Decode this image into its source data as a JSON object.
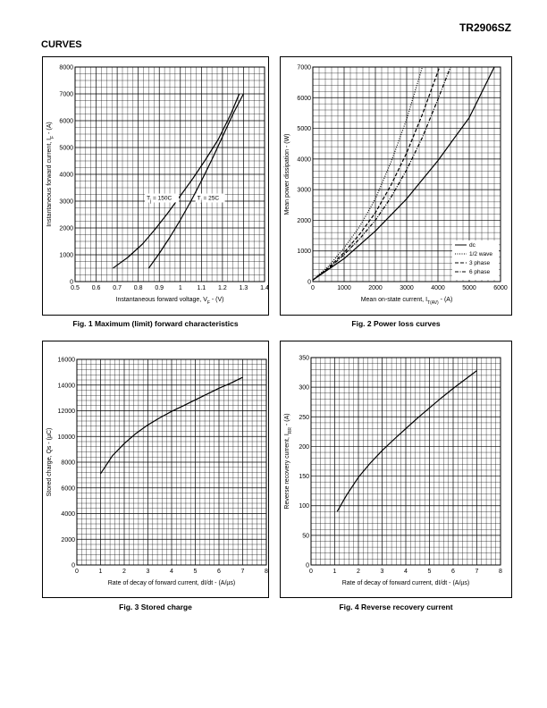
{
  "header": {
    "doc_id": "TR2906SZ",
    "section": "CURVES"
  },
  "chart_data": [
    {
      "id": "fig1",
      "type": "line",
      "caption": "Fig. 1 Maximum (limit) forward characteristics",
      "xlabel_pre": "Instantaneous forward voltage, V",
      "xlabel_sub": "F",
      "xlabel_post": " - (V)",
      "ylabel_pre": "Instantaneous forward current, I",
      "ylabel_sub": "F",
      "ylabel_post": " - (A)",
      "xlim": [
        0.5,
        1.4
      ],
      "ylim": [
        0,
        8000
      ],
      "xticks": [
        "0.5",
        "0.6",
        "0.7",
        "0.8",
        "0.9",
        "1",
        "1.1",
        "1.2",
        "1.3",
        "1.4"
      ],
      "yticks": [
        "0",
        "1000",
        "2000",
        "3000",
        "4000",
        "5000",
        "6000",
        "7000",
        "8000"
      ],
      "grid": true,
      "series": [
        {
          "name": "T j = 150C",
          "label_pre": "T",
          "label_sub": "j",
          "label_post": " = 150C",
          "dash": "solid",
          "x": [
            0.68,
            0.75,
            0.82,
            0.88,
            0.94,
            1.0,
            1.06,
            1.12,
            1.18,
            1.24,
            1.28
          ],
          "y": [
            500,
            900,
            1400,
            1950,
            2550,
            3200,
            3850,
            4550,
            5300,
            6250,
            7000
          ]
        },
        {
          "name": "T j = 25C",
          "label_pre": "T",
          "label_sub": "j",
          "label_post": " = 25C",
          "dash": "solid",
          "x": [
            0.85,
            0.9,
            0.95,
            1.0,
            1.05,
            1.1,
            1.15,
            1.2,
            1.25,
            1.3
          ],
          "y": [
            500,
            1050,
            1650,
            2300,
            3000,
            3750,
            4550,
            5400,
            6250,
            7000
          ]
        }
      ]
    },
    {
      "id": "fig2",
      "type": "line",
      "caption": "Fig. 2 Power loss curves",
      "xlabel_pre": "Mean on-state current, I",
      "xlabel_sub": "T(AV)",
      "xlabel_post": " - (A)",
      "ylabel_pre": "Mean power dissipation - (W)",
      "ylabel_sub": "",
      "ylabel_post": "",
      "xlim": [
        0,
        6000
      ],
      "ylim": [
        0,
        7000
      ],
      "xticks": [
        "0",
        "1000",
        "2000",
        "3000",
        "4000",
        "5000",
        "6000"
      ],
      "yticks": [
        "0",
        "1000",
        "2000",
        "3000",
        "4000",
        "5000",
        "6000",
        "7000"
      ],
      "grid": true,
      "legend": "bottom-right",
      "series": [
        {
          "name": "dc",
          "label_pre": "dc",
          "label_sub": "",
          "label_post": "",
          "dash": "solid",
          "x": [
            0,
            1000,
            2000,
            3000,
            4000,
            5000,
            5800
          ],
          "y": [
            50,
            750,
            1650,
            2700,
            3950,
            5350,
            7000
          ]
        },
        {
          "name": "1/2 wave",
          "label_pre": "1/2 wave",
          "label_sub": "",
          "label_post": "",
          "dash": "dot",
          "x": [
            0,
            500,
            1000,
            1500,
            2000,
            2500,
            3000,
            3500
          ],
          "y": [
            50,
            500,
            1100,
            1800,
            2700,
            3900,
            5300,
            7000
          ]
        },
        {
          "name": "3 phase",
          "label_pre": "3 phase",
          "label_sub": "",
          "label_post": "",
          "dash": "dash",
          "x": [
            0,
            500,
            1000,
            1500,
            2000,
            2500,
            3000,
            3500,
            4050
          ],
          "y": [
            50,
            450,
            950,
            1550,
            2250,
            3150,
            4200,
            5450,
            7000
          ]
        },
        {
          "name": "6 phase",
          "label_pre": "6 phase",
          "label_sub": "",
          "label_post": "",
          "dash": "dashdot",
          "x": [
            0,
            500,
            1000,
            1500,
            2000,
            2500,
            3000,
            3500,
            4000,
            4400
          ],
          "y": [
            50,
            420,
            880,
            1400,
            2000,
            2750,
            3650,
            4700,
            5950,
            7000
          ]
        }
      ]
    },
    {
      "id": "fig3",
      "type": "line",
      "caption": "Fig. 3 Stored charge",
      "xlabel_pre": "Rate of decay of forward current, dI/dt - (A/µs)",
      "xlabel_sub": "",
      "xlabel_post": "",
      "ylabel_pre": "Stored charge, Qs - (µC)",
      "ylabel_sub": "",
      "ylabel_post": "",
      "xlim": [
        0,
        8
      ],
      "ylim": [
        0,
        16000
      ],
      "xticks": [
        "0",
        "1",
        "2",
        "3",
        "4",
        "5",
        "6",
        "7",
        "8"
      ],
      "yticks": [
        "0",
        "2000",
        "4000",
        "6000",
        "8000",
        "10000",
        "12000",
        "14000",
        "16000"
      ],
      "grid": true,
      "series": [
        {
          "name": "",
          "label_pre": "",
          "label_sub": "",
          "label_post": "",
          "dash": "solid",
          "x": [
            1,
            1.5,
            2,
            2.5,
            3,
            3.5,
            4,
            4.5,
            5,
            5.5,
            6,
            6.5,
            7
          ],
          "y": [
            7100,
            8500,
            9450,
            10250,
            10900,
            11450,
            11950,
            12400,
            12850,
            13300,
            13750,
            14150,
            14600
          ]
        }
      ]
    },
    {
      "id": "fig4",
      "type": "line",
      "caption": "Fig. 4 Reverse recovery current",
      "xlabel_pre": "Rate of decay of forward current, dI/dt - (A/µs)",
      "xlabel_sub": "",
      "xlabel_post": "",
      "ylabel_pre": "Reverse recovery current, I",
      "ylabel_sub": "RR",
      "ylabel_post": " - (A)",
      "xlim": [
        0,
        8
      ],
      "ylim": [
        0,
        350
      ],
      "xticks": [
        "0",
        "1",
        "2",
        "3",
        "4",
        "5",
        "6",
        "7",
        "8"
      ],
      "yticks": [
        "0",
        "50",
        "100",
        "150",
        "200",
        "250",
        "300",
        "350"
      ],
      "grid": true,
      "series": [
        {
          "name": "",
          "label_pre": "",
          "label_sub": "",
          "label_post": "",
          "dash": "solid",
          "x": [
            1.1,
            1.5,
            2,
            2.5,
            3,
            3.5,
            4,
            4.5,
            5,
            5.5,
            6,
            6.5,
            7
          ],
          "y": [
            90,
            118,
            148,
            172,
            193,
            212,
            230,
            248,
            265,
            282,
            298,
            313,
            328
          ]
        }
      ]
    }
  ]
}
